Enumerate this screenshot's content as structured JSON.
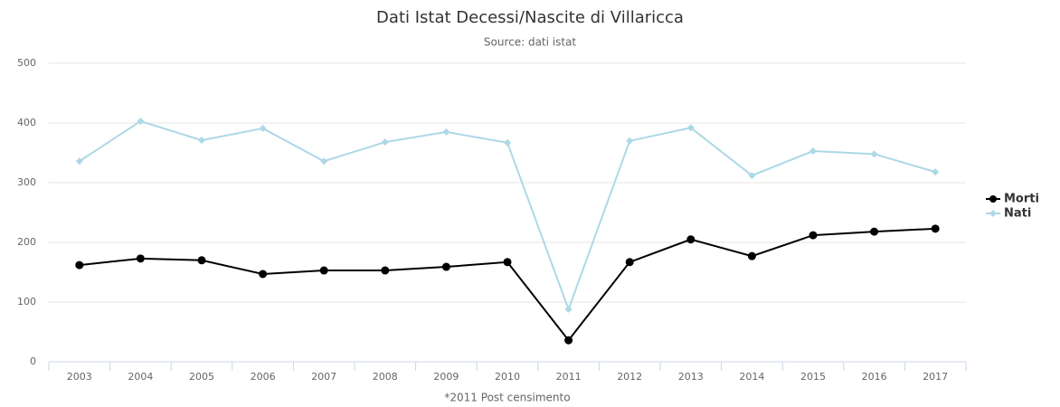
{
  "chart_data": {
    "type": "line",
    "title": "Dati Istat Decessi/Nascite di Villaricca",
    "subtitle": "Source: dati istat",
    "x_label": "*2011 Post censimento",
    "categories": [
      "2003",
      "2004",
      "2005",
      "2006",
      "2007",
      "2008",
      "2009",
      "2010",
      "2011",
      "2012",
      "2013",
      "2014",
      "2015",
      "2016",
      "2017"
    ],
    "series": [
      {
        "name": "Morti",
        "color": "#000000",
        "values": [
          162,
          173,
          170,
          147,
          153,
          153,
          159,
          167,
          36,
          167,
          205,
          177,
          212,
          218,
          223
        ]
      },
      {
        "name": "Nati",
        "color": "#add8e6",
        "values": [
          336,
          403,
          371,
          391,
          336,
          368,
          385,
          367,
          88,
          370,
          392,
          312,
          353,
          348,
          318
        ]
      }
    ],
    "ylim": [
      0,
      500
    ],
    "yticks": [
      0,
      100,
      200,
      300,
      400,
      500
    ],
    "grid": true,
    "legend": "right"
  }
}
